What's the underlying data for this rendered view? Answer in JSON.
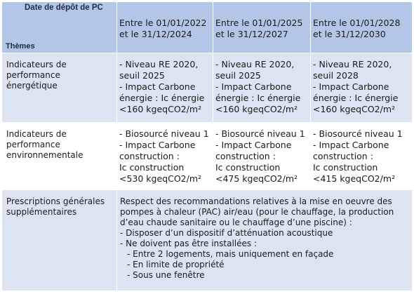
{
  "header": {
    "date_label": "Date de dépôt de PC",
    "themes_label": "Thèmes",
    "periods": [
      "Entre le 01/01/2022 et le 31/12/2024",
      "Entre le 01/01/2025 et le 31/12/2027",
      "Entre le 01/01/2028 et le 31/12/2030"
    ]
  },
  "rows": [
    {
      "theme": "Indicateurs de performance énergétique",
      "cells": [
        [
          "- Niveau RE 2020,",
          "seuil 2025",
          "- Impact Carbone",
          "énergie : Ic énergie",
          "<160 kgeqCO2/m²"
        ],
        [
          "- Niveau RE 2020,",
          "seuil 2025",
          "- Impact Carbone",
          "énergie : Ic énergie",
          "<160 kgeqCO2/m²"
        ],
        [
          "- Niveau RE 2020,",
          "seuil 2028",
          "- Impact Carbone",
          "énergie : Ic énergie",
          "<160 kgeqCO2/m²"
        ]
      ]
    },
    {
      "theme": "Indicateurs de performance environnementale",
      "cells": [
        [
          "- Biosourcé niveau 1",
          "- Impact Carbone",
          "construction :",
          "Ic construction",
          "<530 kgeqCO2/m²"
        ],
        [
          "- Biosourcé niveau 1",
          "- Impact Carbone",
          "construction :",
          "Ic construction",
          "<475 kgeqCO2/m²"
        ],
        [
          "- Biosourcé niveau 1",
          "- Impact Carbone",
          "construction :",
          "Ic construction",
          "<415 kgeqCO2/m²"
        ]
      ]
    }
  ],
  "prescriptions": {
    "theme": "Prescriptions générales supplémentaires",
    "lines": [
      "Respect des recommandations relatives à la mise en oeuvre des",
      "pompes à chaleur (PAC) air/eau (pour le chauffage, la production",
      "d’eau chaude sanitaire ou le chauffage d’une piscine) :",
      "- Disposer d’un dispositif d’atténuation acoustique",
      "- Ne doivent pas être installées :",
      "- Entre 2 logements, mais uniquement en façade",
      "- En limite de propriété",
      "- Sous une fenêtre"
    ]
  }
}
